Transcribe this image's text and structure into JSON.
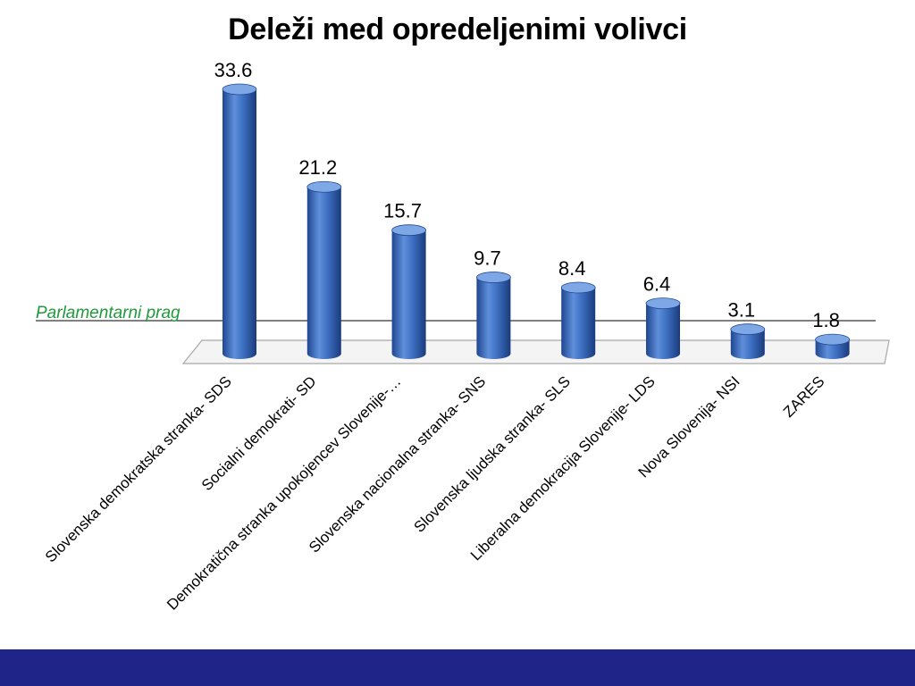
{
  "colors": {
    "bar": "#3e70c2",
    "bar_dark": "#1f4690",
    "bar_light": "#7ea7e6",
    "threshold_label": "#1f9a3a",
    "footer": "#1f2588"
  },
  "chart_data": {
    "type": "bar",
    "title": "Deleži med opredeljenimi volivci",
    "categories": [
      "Slovenska demokratska stranka- SDS",
      "Socialni demokrati- SD",
      "Demokratična stranka upokojencev Slovenije-…",
      "Slovenska nacionalna stranka- SNS",
      "Slovenska ljudska stranka- SLS",
      "Liberalna demokracija Slovenije- LDS",
      "Nova Slovenija- NSI",
      "ZARES"
    ],
    "values": [
      33.6,
      21.2,
      15.7,
      9.7,
      8.4,
      6.4,
      3.1,
      1.8
    ],
    "data_labels": [
      "33.6",
      "21.2",
      "15.7",
      "9.7",
      "8.4",
      "6.4",
      "3.1",
      "1.8"
    ],
    "threshold": {
      "label": "Parlamentarni prag"
    },
    "xlabel": "",
    "ylabel": "",
    "ylim": [
      0,
      33.6
    ],
    "grid": false,
    "legend": "none",
    "style": "3d-cylinder"
  }
}
